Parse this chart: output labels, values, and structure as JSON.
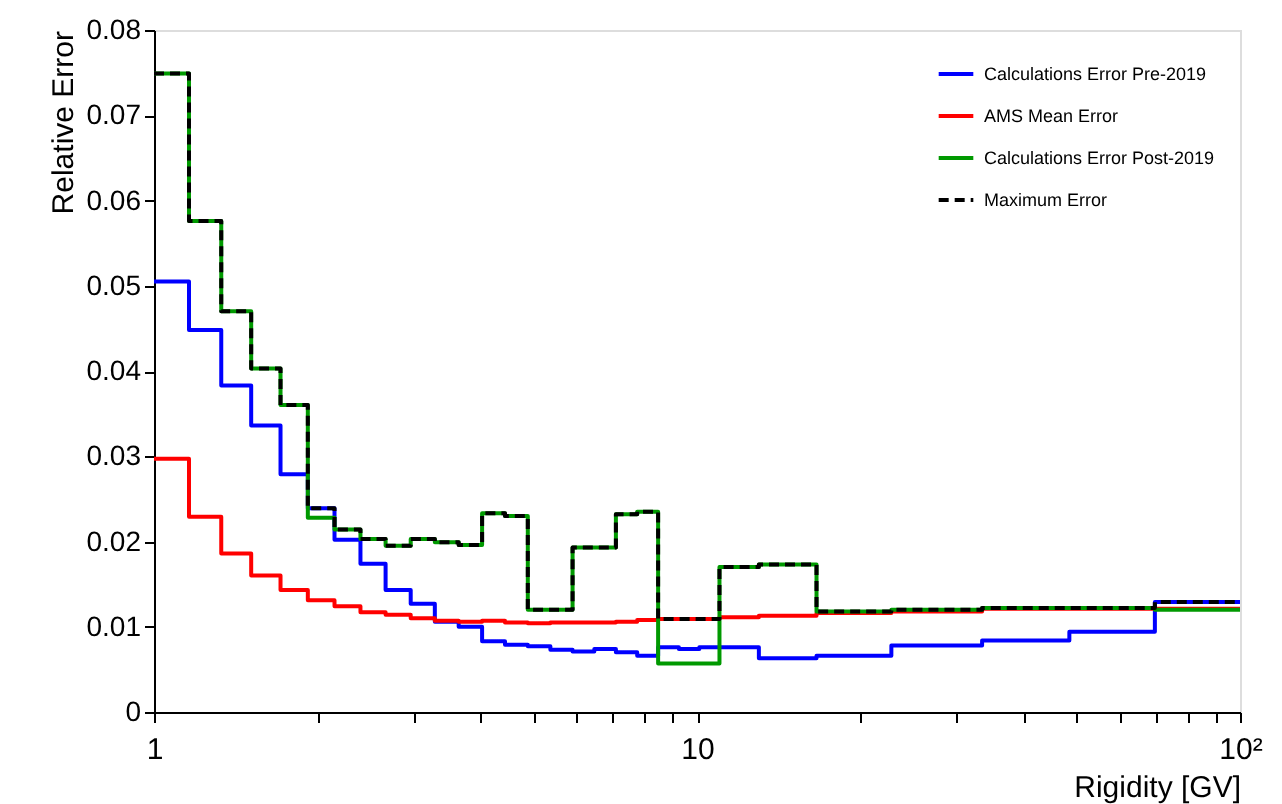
{
  "chart_data": {
    "type": "histogram",
    "xlabel": "Rigidity [GV]",
    "ylabel": "Relative Error",
    "log": "x",
    "grid": false,
    "legend": "top right",
    "bins": [
      1,
      1.16,
      1.33,
      1.51,
      1.71,
      1.92,
      2.15,
      2.4,
      2.67,
      2.97,
      3.29,
      3.64,
      4.02,
      4.43,
      4.88,
      5.37,
      5.9,
      6.47,
      7.09,
      7.76,
      8.48,
      9.26,
      10.1,
      11,
      13,
      16.6,
      22.8,
      33.5,
      48.5,
      69.7,
      100
    ],
    "xlim": [
      1,
      100
    ],
    "ylim": [
      0,
      0.08
    ],
    "xticks": [
      1,
      {
        "value": 2,
        "label": null
      },
      {
        "value": 3,
        "label": null
      },
      {
        "value": 4,
        "label": null
      },
      {
        "value": 5,
        "label": null
      },
      {
        "value": 6,
        "label": null
      },
      {
        "value": 7,
        "label": null
      },
      {
        "value": 8,
        "label": null
      },
      {
        "value": 9,
        "label": null
      },
      10,
      {
        "value": 20,
        "label": null
      },
      {
        "value": 30,
        "label": null
      },
      {
        "value": 40,
        "label": null
      },
      {
        "value": 50,
        "label": null
      },
      {
        "value": 60,
        "label": null
      },
      {
        "value": 70,
        "label": null
      },
      {
        "value": 80,
        "label": null
      },
      {
        "value": 90,
        "label": null
      },
      {
        "value": 100,
        "label": "10²"
      }
    ],
    "yticks": [
      0,
      0.01,
      0.02,
      0.03,
      0.04,
      0.05,
      0.06,
      0.07,
      0.08
    ],
    "series": [
      {
        "name": "Calculations Error Pre-2019",
        "color": "#0000ff",
        "values": [
          0.0505,
          0.0448,
          0.0383,
          0.0336,
          0.0279,
          0.0239,
          0.0202,
          0.0174,
          0.0143,
          0.0127,
          0.0106,
          0.01,
          0.0083,
          0.0079,
          0.0077,
          0.0073,
          0.0071,
          0.0074,
          0.007,
          0.0066,
          0.0076,
          0.0074,
          0.0076,
          0.0076,
          0.0063,
          0.0066,
          0.0078,
          0.0084,
          0.0094,
          0.0129
        ]
      },
      {
        "name": "AMS Mean Error",
        "color": "#ff0000",
        "values": [
          0.0297,
          0.0229,
          0.0186,
          0.016,
          0.0143,
          0.0131,
          0.0124,
          0.0117,
          0.0114,
          0.011,
          0.0107,
          0.0106,
          0.0107,
          0.0105,
          0.0104,
          0.0105,
          0.0105,
          0.0105,
          0.0106,
          0.0108,
          0.0109,
          0.0109,
          0.0109,
          0.0111,
          0.0113,
          0.0116,
          0.0118,
          0.0121,
          0.0121,
          0.0121
        ]
      },
      {
        "name": "Calculations Error Post-2019",
        "color": "#009900",
        "values": [
          0.0749,
          0.0576,
          0.047,
          0.0403,
          0.036,
          0.0228,
          0.0214,
          0.0203,
          0.0195,
          0.0203,
          0.0199,
          0.0196,
          0.0233,
          0.023,
          0.012,
          0.012,
          0.0193,
          0.0193,
          0.0232,
          0.0235,
          0.0057,
          0.0057,
          0.0057,
          0.017,
          0.0173,
          0.0118,
          0.012,
          0.0122,
          0.0122,
          0.012
        ]
      },
      {
        "name": "Maximum Error",
        "color": "#000000",
        "line_style": "dashed",
        "values": [
          0.0749,
          0.0576,
          0.047,
          0.0403,
          0.036,
          0.0239,
          0.0214,
          0.0203,
          0.0195,
          0.0203,
          0.0199,
          0.0196,
          0.0233,
          0.023,
          0.012,
          0.012,
          0.0193,
          0.0193,
          0.0232,
          0.0235,
          0.0109,
          0.0109,
          0.0109,
          0.017,
          0.0173,
          0.0118,
          0.012,
          0.0122,
          0.0122,
          0.0129
        ]
      }
    ]
  }
}
